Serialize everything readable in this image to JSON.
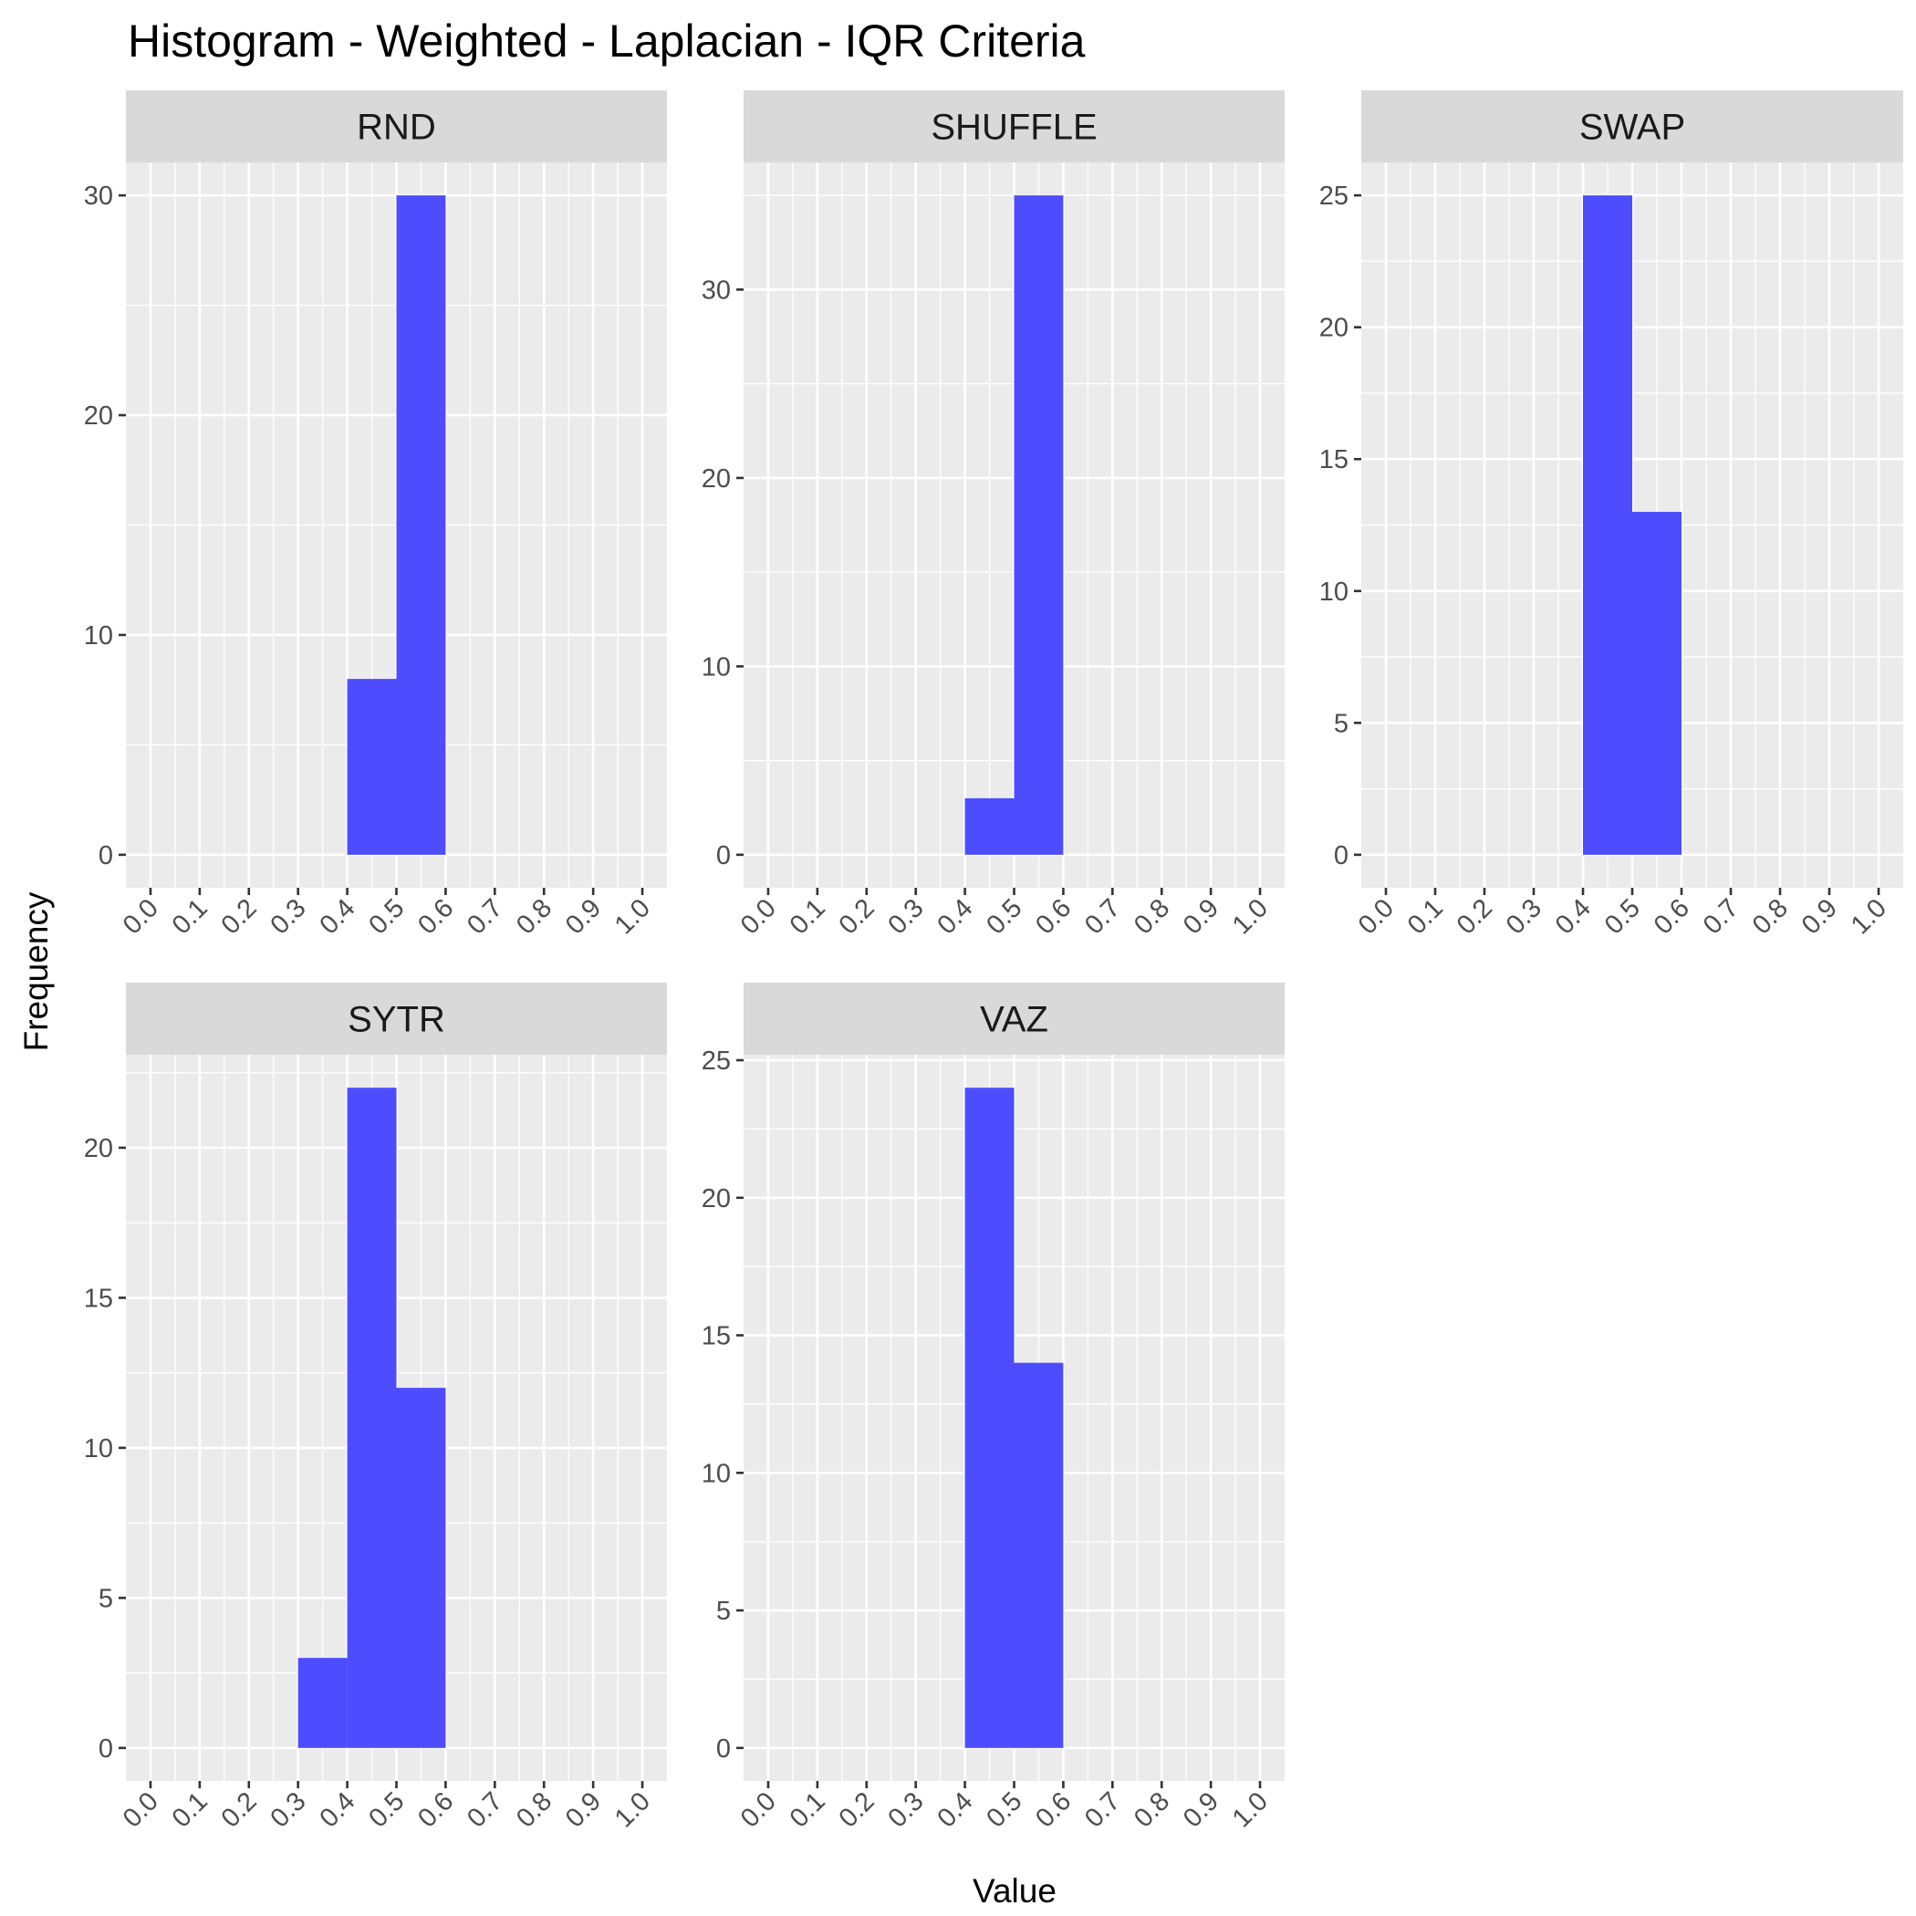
{
  "chart_data": {
    "type": "bar",
    "title": "Histogram - Weighted - Laplacian - IQR Criteria",
    "xlabel": "Value",
    "ylabel": "Frequency",
    "bar_color": "#4d4dff",
    "panel_background": "#ebebeb",
    "strip_background": "#d9d9d9",
    "grid": true,
    "x_ticks": [
      "0.0",
      "0.1",
      "0.2",
      "0.3",
      "0.4",
      "0.5",
      "0.6",
      "0.7",
      "0.8",
      "0.9",
      "1.0"
    ],
    "xlim": [
      -0.05,
      1.05
    ],
    "bin_width": 0.1,
    "panels": [
      {
        "name": "RND",
        "bins": [
          [
            0.4,
            0.5,
            8
          ],
          [
            0.5,
            0.6,
            30
          ]
        ],
        "ylim": [
          -1.5,
          31.5
        ],
        "y_ticks": [
          0,
          10,
          20,
          30
        ]
      },
      {
        "name": "SHUFFLE",
        "bins": [
          [
            0.4,
            0.5,
            3
          ],
          [
            0.5,
            0.6,
            35
          ]
        ],
        "ylim": [
          -1.75,
          36.75
        ],
        "y_ticks": [
          0,
          10,
          20,
          30
        ]
      },
      {
        "name": "SWAP",
        "bins": [
          [
            0.4,
            0.5,
            25
          ],
          [
            0.5,
            0.6,
            13
          ]
        ],
        "ylim": [
          -1.25,
          26.25
        ],
        "y_ticks": [
          0,
          5,
          10,
          15,
          20,
          25
        ]
      },
      {
        "name": "SYTR",
        "bins": [
          [
            0.3,
            0.4,
            3
          ],
          [
            0.4,
            0.5,
            22
          ],
          [
            0.5,
            0.6,
            12
          ]
        ],
        "ylim": [
          -1.1,
          23.1
        ],
        "y_ticks": [
          0,
          5,
          10,
          15,
          20
        ]
      },
      {
        "name": "VAZ",
        "bins": [
          [
            0.4,
            0.5,
            24
          ],
          [
            0.5,
            0.6,
            14
          ]
        ],
        "ylim": [
          -1.2,
          25.2
        ],
        "y_ticks": [
          0,
          5,
          10,
          15,
          20,
          25
        ]
      }
    ]
  }
}
